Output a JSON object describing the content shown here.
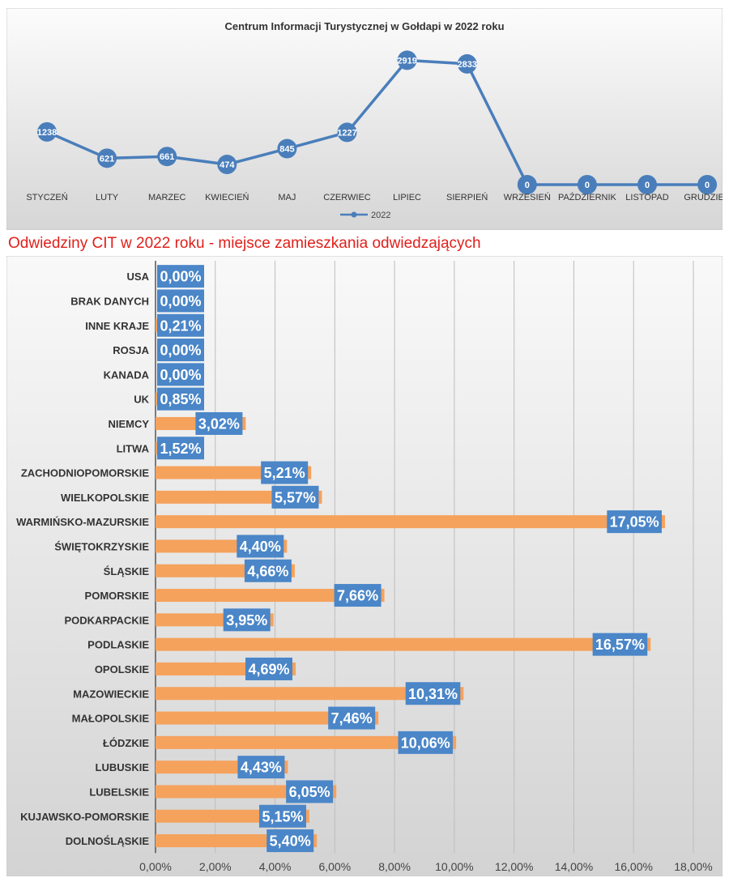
{
  "colors": {
    "line": "#4a7ebb",
    "marker": "#4a7ebb",
    "bar": "#f5a25d",
    "label_box": "#4a86c8",
    "label_text": "#ffffff",
    "heading": "#e0201b"
  },
  "chart_data": [
    {
      "type": "line",
      "title": "Centrum Informacji Turystycznej w Gołdapi w 2022 roku",
      "xlabel": "",
      "ylabel": "",
      "categories": [
        "STYCZEŃ",
        "LUTY",
        "MARZEC",
        "KWIECIEŃ",
        "MAJ",
        "CZERWIEC",
        "LIPIEC",
        "SIERPIEŃ",
        "WRZESIEŃ",
        "PAŹDZIERNIK",
        "LISTOPAD",
        "GRUDZIEŃ"
      ],
      "series": [
        {
          "name": "2022",
          "values": [
            1238,
            621,
            661,
            474,
            845,
            1227,
            2919,
            2833,
            0,
            0,
            0,
            0
          ]
        }
      ],
      "ylim": [
        0,
        3200
      ],
      "legend": "bottom",
      "grid": false
    },
    {
      "type": "bar",
      "orientation": "horizontal",
      "title": "Odwiedziny CIT w 2022 roku - miejsce zamieszkania odwiedzających",
      "xlabel": "",
      "ylabel": "",
      "categories": [
        "USA",
        "BRAK DANYCH",
        "INNE KRAJE",
        "ROSJA",
        "KANADA",
        "UK",
        "NIEMCY",
        "LITWA",
        "ZACHODNIOPOMORSKIE",
        "WIELKOPOLSKIE",
        "WARMIŃSKO-MAZURSKIE",
        "ŚWIĘTOKRZYSKIE",
        "ŚLĄSKIE",
        "POMORSKIE",
        "PODKARPACKIE",
        "PODLASKIE",
        "OPOLSKIE",
        "MAZOWIECKIE",
        "MAŁOPOLSKIE",
        "ŁÓDZKIE",
        "LUBUSKIE",
        "LUBELSKIE",
        "KUJAWSKO-POMORSKIE",
        "DOLNOŚLĄSKIE"
      ],
      "values": [
        0.0,
        0.0,
        0.21,
        0.0,
        0.0,
        0.85,
        3.02,
        1.52,
        5.21,
        5.57,
        17.05,
        4.4,
        4.66,
        7.66,
        3.95,
        16.57,
        4.69,
        10.31,
        7.46,
        10.06,
        4.43,
        6.05,
        5.15,
        5.4
      ],
      "data_labels": [
        "0,00%",
        "0,00%",
        "0,21%",
        "0,00%",
        "0,00%",
        "0,85%",
        "3,02%",
        "1,52%",
        "5,21%",
        "5,57%",
        "17,05%",
        "4,40%",
        "4,66%",
        "7,66%",
        "3,95%",
        "16,57%",
        "4,69%",
        "10,31%",
        "7,46%",
        "10,06%",
        "4,43%",
        "6,05%",
        "5,15%",
        "5,40%"
      ],
      "x_ticks": [
        "0,00%",
        "2,00%",
        "4,00%",
        "6,00%",
        "8,00%",
        "10,00%",
        "12,00%",
        "14,00%",
        "16,00%",
        "18,00%"
      ],
      "xlim": [
        0,
        18
      ],
      "grid": true
    }
  ]
}
